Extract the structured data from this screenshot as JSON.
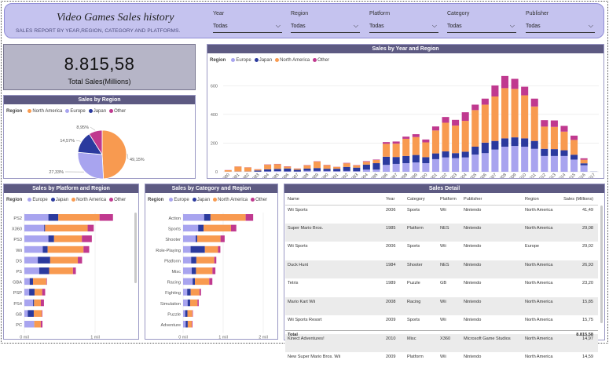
{
  "header": {
    "title": "Video Games Sales history",
    "subtitle": "SALES REPORT BY YEAR,REGION, CATEGORY AND PLATFORMS."
  },
  "filters": [
    {
      "label": "Year",
      "value": "Todas"
    },
    {
      "label": "Region",
      "value": "Todas"
    },
    {
      "label": "Platform",
      "value": "Todas"
    },
    {
      "label": "Category",
      "value": "Todas"
    },
    {
      "label": "Publisher",
      "value": "Todas"
    }
  ],
  "kpi": {
    "value": "8.815,58",
    "label": "Total Sales(Millions)"
  },
  "colors": {
    "Europe": "#a8a4ef",
    "Japan": "#2b3a9e",
    "North America": "#f89a50",
    "Other": "#c0398f"
  },
  "legend_label": "Region",
  "pie": {
    "title": "Sales by Region",
    "legend": [
      "North America",
      "Europe",
      "Japan",
      "Other"
    ],
    "slices": [
      {
        "name": "North America",
        "pct": 49.15,
        "label": "49,15%"
      },
      {
        "name": "Europe",
        "pct": 27.33,
        "label": "27,33%"
      },
      {
        "name": "Japan",
        "pct": 14.57,
        "label": "14,57%"
      },
      {
        "name": "Other",
        "pct": 8.95,
        "label": "8,95%"
      }
    ]
  },
  "chart_data": [
    {
      "type": "bar",
      "title": "Sales by Year and Region",
      "stacked": true,
      "legend": [
        "Europe",
        "Japan",
        "North America",
        "Other"
      ],
      "categories": [
        "1980",
        "1981",
        "1982",
        "1983",
        "1984",
        "1985",
        "1986",
        "1987",
        "1988",
        "1989",
        "1990",
        "1991",
        "1992",
        "1993",
        "1994",
        "1995",
        "1996",
        "1997",
        "1998",
        "1999",
        "2000",
        "2001",
        "2002",
        "2003",
        "2004",
        "2005",
        "2006",
        "2007",
        "2008",
        "2009",
        "2010",
        "2011",
        "2012",
        "2013",
        "2014",
        "2015",
        "2016",
        "2017"
      ],
      "ylim": [
        0,
        700
      ],
      "yticks": [
        0,
        200,
        400,
        600
      ],
      "series": [
        {
          "name": "Europe",
          "values": [
            1,
            2,
            2,
            1,
            3,
            5,
            3,
            2,
            7,
            6,
            6,
            4,
            6,
            4,
            15,
            15,
            48,
            55,
            60,
            65,
            60,
            88,
            100,
            95,
            100,
            120,
            130,
            155,
            175,
            180,
            175,
            160,
            110,
            110,
            110,
            85,
            45,
            0
          ]
        },
        {
          "name": "Japan",
          "values": [
            0,
            0,
            0,
            8,
            14,
            15,
            20,
            12,
            15,
            20,
            15,
            17,
            28,
            25,
            35,
            45,
            57,
            48,
            50,
            52,
            42,
            40,
            42,
            35,
            40,
            55,
            73,
            60,
            58,
            60,
            58,
            55,
            50,
            48,
            40,
            34,
            14,
            1
          ]
        },
        {
          "name": "North America",
          "values": [
            10,
            34,
            28,
            8,
            32,
            33,
            13,
            8,
            23,
            45,
            25,
            13,
            25,
            16,
            20,
            22,
            90,
            93,
            120,
            125,
            103,
            160,
            200,
            192,
            215,
            255,
            265,
            310,
            350,
            338,
            300,
            240,
            155,
            155,
            130,
            103,
            25,
            0
          ]
        },
        {
          "name": "Other",
          "values": [
            1,
            1,
            1,
            1,
            2,
            2,
            2,
            1,
            2,
            2,
            2,
            1,
            3,
            2,
            4,
            3,
            12,
            15,
            15,
            20,
            20,
            28,
            40,
            40,
            60,
            38,
            42,
            77,
            85,
            70,
            60,
            55,
            45,
            45,
            40,
            30,
            10,
            0
          ]
        }
      ]
    },
    {
      "type": "bar",
      "orientation": "horizontal",
      "stacked": true,
      "title": "Sales by Platform and Region",
      "legend": [
        "Europe",
        "Japan",
        "North America",
        "Other"
      ],
      "categories": [
        "PS2",
        "X360",
        "PS3",
        "Wii",
        "DS",
        "PS",
        "GBA",
        "PSP",
        "PS4",
        "GB",
        "PC"
      ],
      "xlim": [
        0,
        2000000
      ],
      "xticks": [
        "0 mil",
        "1 mil"
      ],
      "series": [
        {
          "name": "Europe",
          "values": [
            340000,
            280000,
            340000,
            260000,
            190000,
            210000,
            75000,
            68000,
            123000,
            48000,
            140000
          ]
        },
        {
          "name": "Japan",
          "values": [
            140000,
            13000,
            80000,
            69000,
            175000,
            140000,
            47000,
            76000,
            14000,
            85000,
            0
          ]
        },
        {
          "name": "North America",
          "values": [
            583000,
            602000,
            393000,
            507000,
            391000,
            337000,
            188000,
            108000,
            96000,
            114000,
            92000
          ]
        },
        {
          "name": "Other",
          "values": [
            190000,
            86000,
            141000,
            81000,
            60000,
            41000,
            8000,
            42000,
            44000,
            8000,
            24000
          ]
        }
      ]
    },
    {
      "type": "bar",
      "orientation": "horizontal",
      "stacked": true,
      "title": "Sales by Category and Region",
      "legend": [
        "Europe",
        "Japan",
        "North America",
        "Other"
      ],
      "categories": [
        "Action",
        "Sports",
        "Shooter",
        "Role-Playing",
        "Platform",
        "Misc",
        "Racing",
        "Fighting",
        "Simulation",
        "Puzzle",
        "Adventure"
      ],
      "xlim": [
        0,
        2000000
      ],
      "xticks": [
        "0 mil",
        "1 mil",
        "2 mil"
      ],
      "series": [
        {
          "name": "Europe",
          "values": [
            525000,
            376000,
            314000,
            188000,
            201000,
            215000,
            238000,
            102000,
            113000,
            51000,
            64000
          ]
        },
        {
          "name": "Japan",
          "values": [
            159000,
            135000,
            38000,
            356000,
            130000,
            107000,
            56000,
            87000,
            63000,
            57000,
            52000
          ]
        },
        {
          "name": "North America",
          "values": [
            877000,
            683000,
            582000,
            327000,
            447000,
            410000,
            359000,
            221000,
            183000,
            123000,
            102000
          ]
        },
        {
          "name": "Other",
          "values": [
            187000,
            134000,
            103000,
            59000,
            51000,
            74000,
            77000,
            37000,
            31000,
            13000,
            17000
          ]
        }
      ]
    }
  ],
  "table": {
    "title": "Sales Detail",
    "columns": [
      "Name",
      "Year",
      "Category",
      "Platform",
      "Publisher",
      "Region",
      "Sales (Millions)"
    ],
    "rows": [
      [
        "Wii Sports",
        "2006",
        "Sports",
        "Wii",
        "Nintendo",
        "North America",
        "41,49"
      ],
      [
        "Super Mario Bros.",
        "1985",
        "Platform",
        "NES",
        "Nintendo",
        "North America",
        "29,08"
      ],
      [
        "Wii Sports",
        "2006",
        "Sports",
        "Wii",
        "Nintendo",
        "Europe",
        "29,02"
      ],
      [
        "Duck Hunt",
        "1984",
        "Shooter",
        "NES",
        "Nintendo",
        "North America",
        "26,93"
      ],
      [
        "Tetris",
        "1989",
        "Puzzle",
        "GB",
        "Nintendo",
        "North America",
        "23,20"
      ],
      [
        "Mario Kart Wii",
        "2008",
        "Racing",
        "Wii",
        "Nintendo",
        "North America",
        "15,85"
      ],
      [
        "Wii Sports Resort",
        "2009",
        "Sports",
        "Wii",
        "Nintendo",
        "North America",
        "15,75"
      ],
      [
        "Kinect Adventures!",
        "2010",
        "Misc",
        "X360",
        "Microsoft Game Studios",
        "North America",
        "14,97"
      ],
      [
        "New Super Mario Bros. Wii",
        "2009",
        "Platform",
        "Wii",
        "Nintendo",
        "North America",
        "14,59"
      ]
    ],
    "total_label": "Total",
    "total_value": "8.815,58"
  }
}
